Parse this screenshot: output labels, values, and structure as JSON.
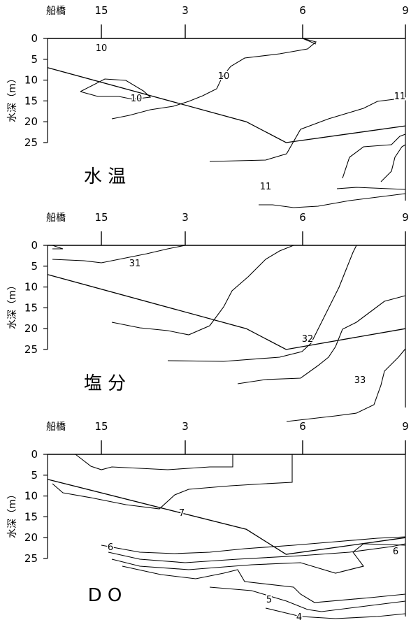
{
  "chart_data": [
    {
      "type": "contour",
      "title": "水 温",
      "station_label": "船橋",
      "x_ticks": [
        "15",
        "3",
        "6",
        "9"
      ],
      "ylabel": "水深（m）",
      "y_ticks": [
        0,
        5,
        10,
        15,
        20,
        25
      ],
      "ylim": [
        0,
        25
      ],
      "contour_labels": [
        "10",
        "10",
        "10",
        "11",
        "11"
      ],
      "bottom_profile": {
        "x": [
          0,
          5,
          6,
          9
        ],
        "depth": [
          7,
          20,
          25,
          21
        ]
      }
    },
    {
      "type": "contour",
      "title": "塩 分",
      "station_label": "船橋",
      "x_ticks": [
        "15",
        "3",
        "6",
        "9"
      ],
      "ylabel": "水深（m）",
      "y_ticks": [
        0,
        5,
        10,
        15,
        20,
        25
      ],
      "ylim": [
        0,
        25
      ],
      "contour_labels": [
        "31",
        "32",
        "33"
      ],
      "bottom_profile": {
        "x": [
          0,
          5,
          6,
          9
        ],
        "depth": [
          7,
          20,
          25,
          20
        ]
      }
    },
    {
      "type": "contour",
      "title": "D O",
      "station_label": "船橋",
      "x_ticks": [
        "15",
        "3",
        "6",
        "9"
      ],
      "ylabel": "水深（m）",
      "y_ticks": [
        0,
        5,
        10,
        15,
        20,
        25
      ],
      "ylim": [
        0,
        25
      ],
      "contour_labels": [
        "7",
        "6",
        "6",
        "5",
        "4"
      ],
      "bottom_profile": {
        "x": [
          0,
          5,
          6,
          9
        ],
        "depth": [
          6,
          18,
          24,
          20
        ]
      }
    }
  ]
}
